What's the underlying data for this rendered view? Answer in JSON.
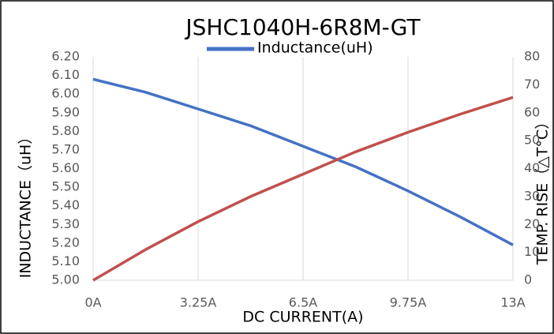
{
  "chart_data": {
    "type": "line",
    "title": "JSHC1040H-6R8M-GT",
    "xlabel": "DC CURRENT(A)",
    "ylabel": "INDUCTANCE（uH）",
    "y2label": "TEMP. RISE（△T°C）",
    "x": [
      0,
      1.625,
      3.25,
      4.875,
      6.5,
      8.125,
      9.75,
      11.375,
      13
    ],
    "series": [
      {
        "name": "Inductance(uH)",
        "color": "#4472c4",
        "values": [
          6.08,
          6.01,
          5.92,
          5.83,
          5.72,
          5.61,
          5.48,
          5.34,
          5.19
        ]
      },
      {
        "color": "#c0504d",
        "axis": "y2",
        "values": [
          0,
          11,
          21,
          30,
          38,
          46,
          53,
          59.5,
          65.5
        ]
      }
    ],
    "xlim": [
      0,
      13
    ],
    "xticks": [
      {
        "value": 0,
        "label": "0A"
      },
      {
        "value": 3.25,
        "label": "3.25A"
      },
      {
        "value": 6.5,
        "label": "6.5A"
      },
      {
        "value": 9.75,
        "label": "9.75A"
      },
      {
        "value": 13,
        "label": "13A"
      }
    ],
    "ylim": [
      5,
      6.2
    ],
    "yticks": [
      {
        "value": 5,
        "label": "5.00"
      },
      {
        "value": 5.1,
        "label": "5.10"
      },
      {
        "value": 5.2,
        "label": "5.20"
      },
      {
        "value": 5.3,
        "label": "5.30"
      },
      {
        "value": 5.4,
        "label": "5.40"
      },
      {
        "value": 5.5,
        "label": "5.50"
      },
      {
        "value": 5.6,
        "label": "5.60"
      },
      {
        "value": 5.7,
        "label": "5.70"
      },
      {
        "value": 5.8,
        "label": "5.80"
      },
      {
        "value": 5.9,
        "label": "5.90"
      },
      {
        "value": 6,
        "label": "6.00"
      },
      {
        "value": 6.1,
        "label": "6.10"
      },
      {
        "value": 6.2,
        "label": "6.20"
      }
    ],
    "y2lim": [
      0,
      80
    ],
    "y2ticks": [
      0,
      10,
      20,
      30,
      40,
      50,
      60,
      70,
      80
    ],
    "grid": "x",
    "legend": "top"
  }
}
